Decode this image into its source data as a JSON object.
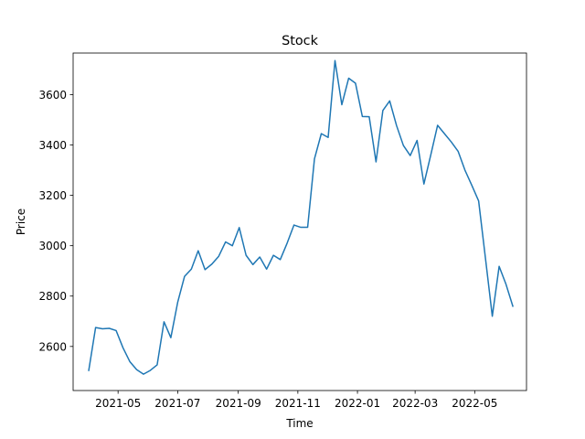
{
  "chart_data": {
    "type": "line",
    "title": "Stock",
    "xlabel": "Time",
    "ylabel": "Price",
    "xlim": [
      "2021-03-16",
      "2022-06-23"
    ],
    "ylim": [
      2425,
      3765
    ],
    "x_ticks": [
      {
        "date": "2021-05-01",
        "label": "2021-05"
      },
      {
        "date": "2021-07-01",
        "label": "2021-07"
      },
      {
        "date": "2021-09-01",
        "label": "2021-09"
      },
      {
        "date": "2021-11-01",
        "label": "2021-11"
      },
      {
        "date": "2022-01-01",
        "label": "2022-01"
      },
      {
        "date": "2022-03-01",
        "label": "2022-03"
      },
      {
        "date": "2022-05-01",
        "label": "2022-05"
      }
    ],
    "y_ticks": [
      2600,
      2800,
      3000,
      3200,
      3400,
      3600
    ],
    "grid": false,
    "line_color": "#1f77b4",
    "series": [
      {
        "x": [
          "2021-04-01",
          "2021-04-08",
          "2021-04-15",
          "2021-04-22",
          "2021-04-29",
          "2021-05-06",
          "2021-05-13",
          "2021-05-20",
          "2021-05-27",
          "2021-06-03",
          "2021-06-10",
          "2021-06-17",
          "2021-06-24",
          "2021-07-01",
          "2021-07-08",
          "2021-07-15",
          "2021-07-22",
          "2021-07-29",
          "2021-08-05",
          "2021-08-12",
          "2021-08-19",
          "2021-08-26",
          "2021-09-02",
          "2021-09-09",
          "2021-09-16",
          "2021-09-23",
          "2021-09-30",
          "2021-10-07",
          "2021-10-14",
          "2021-10-21",
          "2021-10-28",
          "2021-11-04",
          "2021-11-11",
          "2021-11-18",
          "2021-11-25",
          "2021-12-02",
          "2021-12-09",
          "2021-12-16",
          "2021-12-23",
          "2021-12-30",
          "2022-01-06",
          "2022-01-13",
          "2022-01-20",
          "2022-01-27",
          "2022-02-03",
          "2022-02-10",
          "2022-02-17",
          "2022-02-24",
          "2022-03-03",
          "2022-03-10",
          "2022-03-17",
          "2022-03-24",
          "2022-03-31",
          "2022-04-07",
          "2022-04-14",
          "2022-04-21",
          "2022-04-28",
          "2022-05-05",
          "2022-05-12",
          "2022-05-19",
          "2022-05-26",
          "2022-06-02",
          "2022-06-09"
        ],
        "y": [
          2505,
          2675,
          2670,
          2672,
          2663,
          2595,
          2540,
          2508,
          2490,
          2505,
          2527,
          2698,
          2635,
          2775,
          2878,
          2907,
          2980,
          2905,
          2927,
          2958,
          3015,
          3000,
          3072,
          2962,
          2925,
          2955,
          2907,
          2962,
          2945,
          3010,
          3082,
          3073,
          3073,
          3345,
          3445,
          3430,
          3735,
          3560,
          3665,
          3645,
          3513,
          3512,
          3333,
          3537,
          3575,
          3477,
          3398,
          3358,
          3418,
          3245,
          3360,
          3478,
          3445,
          3412,
          3375,
          3300,
          3240,
          3178,
          2950,
          2720,
          2918,
          2847,
          2760
        ]
      }
    ]
  }
}
